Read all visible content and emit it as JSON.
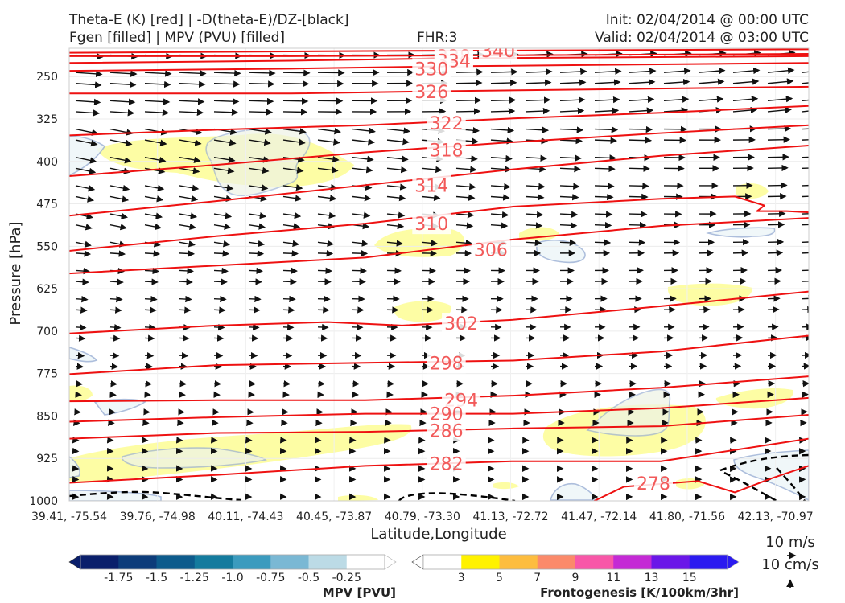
{
  "header": {
    "line1_left": "Theta-E (K) [red] | -D(theta-E)/DZ-[black]",
    "line2_left": "Fgen [filled] | MPV (PVU) [filled]",
    "line1_right": "Init: 02/04/2014 @ 00:00 UTC",
    "line2_right": "Valid: 02/04/2014 @ 03:00 UTC",
    "center": "FHR:3"
  },
  "chart_data": {
    "type": "cross-section",
    "xlabel": "Latitude,Longitude",
    "ylabel": "Pressure [hPa]",
    "x_ticks": [
      "39.41, -75.54",
      "39.76, -74.98",
      "40.11, -74.43",
      "40.45, -73.87",
      "40.79, -73.30",
      "41.13, -72.72",
      "41.47, -72.14",
      "41.80, -71.56",
      "42.13, -70.97"
    ],
    "y_ticks": [
      250,
      325,
      400,
      475,
      550,
      625,
      700,
      775,
      850,
      925,
      1000
    ],
    "y_range": [
      200,
      1000
    ],
    "theta_e_contours": [
      {
        "value": 340,
        "label": "340",
        "points": [
          [
            0,
            208
          ],
          [
            0.4,
            205
          ],
          [
            0.6,
            204
          ],
          [
            1,
            202
          ]
        ]
      },
      {
        "value": 338,
        "label": "338",
        "points": [
          [
            0,
            214
          ],
          [
            0.3,
            214
          ],
          [
            0.5,
            213
          ],
          [
            1,
            210
          ]
        ]
      },
      {
        "value": 334,
        "label": "334",
        "points": [
          [
            0,
            226
          ],
          [
            0.3,
            222
          ],
          [
            0.5,
            218
          ],
          [
            1,
            214
          ]
        ]
      },
      {
        "value": 330,
        "label": "330",
        "points": [
          [
            0,
            240
          ],
          [
            0.3,
            236
          ],
          [
            0.5,
            232
          ],
          [
            1,
            226
          ]
        ]
      },
      {
        "value": 326,
        "label": "326",
        "points": [
          [
            0,
            280
          ],
          [
            0.3,
            280
          ],
          [
            0.5,
            276
          ],
          [
            0.75,
            272
          ],
          [
            1,
            268
          ]
        ]
      },
      {
        "value": 322,
        "label": "322",
        "points": [
          [
            0,
            354
          ],
          [
            0.2,
            344
          ],
          [
            0.4,
            336
          ],
          [
            0.6,
            324
          ],
          [
            0.8,
            314
          ],
          [
            1,
            302
          ]
        ]
      },
      {
        "value": 318,
        "label": "318",
        "points": [
          [
            0,
            426
          ],
          [
            0.2,
            406
          ],
          [
            0.4,
            384
          ],
          [
            0.6,
            366
          ],
          [
            0.8,
            350
          ],
          [
            1,
            336
          ]
        ]
      },
      {
        "value": 314,
        "label": "314",
        "points": [
          [
            0,
            496
          ],
          [
            0.2,
            470
          ],
          [
            0.4,
            442
          ],
          [
            0.6,
            414
          ],
          [
            0.8,
            390
          ],
          [
            1,
            372
          ]
        ]
      },
      {
        "value": 310,
        "label": "310",
        "points": [
          [
            0,
            558
          ],
          [
            0.2,
            532
          ],
          [
            0.4,
            510
          ],
          [
            0.6,
            480
          ],
          [
            0.8,
            466
          ],
          [
            0.9,
            462
          ],
          [
            0.94,
            478
          ],
          [
            0.93,
            488
          ],
          [
            0.97,
            488
          ],
          [
            1,
            490
          ]
        ]
      },
      {
        "value": 306,
        "label": "306",
        "points": [
          [
            0,
            598
          ],
          [
            0.2,
            584
          ],
          [
            0.4,
            570
          ],
          [
            0.6,
            538
          ],
          [
            0.8,
            514
          ],
          [
            1,
            500
          ]
        ]
      },
      {
        "value": 302,
        "label": "302",
        "points": [
          [
            0,
            704
          ],
          [
            0.2,
            690
          ],
          [
            0.35,
            684
          ],
          [
            0.45,
            690
          ],
          [
            0.6,
            680
          ],
          [
            0.8,
            656
          ],
          [
            1,
            630
          ]
        ]
      },
      {
        "value": 298,
        "label": "298",
        "points": [
          [
            0,
            776
          ],
          [
            0.2,
            760
          ],
          [
            0.4,
            756
          ],
          [
            0.6,
            752
          ],
          [
            0.8,
            736
          ],
          [
            1,
            708
          ]
        ]
      },
      {
        "value": 294,
        "label": "294",
        "points": [
          [
            0,
            824
          ],
          [
            0.2,
            822
          ],
          [
            0.4,
            822
          ],
          [
            0.6,
            814
          ],
          [
            0.8,
            800
          ],
          [
            1,
            780
          ]
        ]
      },
      {
        "value": 290,
        "label": "290",
        "points": [
          [
            0,
            860
          ],
          [
            0.2,
            852
          ],
          [
            0.4,
            846
          ],
          [
            0.6,
            846
          ],
          [
            0.8,
            836
          ],
          [
            1,
            818
          ]
        ]
      },
      {
        "value": 286,
        "label": "286",
        "points": [
          [
            0,
            890
          ],
          [
            0.2,
            880
          ],
          [
            0.4,
            878
          ],
          [
            0.6,
            872
          ],
          [
            0.8,
            868
          ],
          [
            1,
            848
          ]
        ]
      },
      {
        "value": 282,
        "label": "282",
        "points": [
          [
            0,
            968
          ],
          [
            0.2,
            954
          ],
          [
            0.4,
            938
          ],
          [
            0.6,
            930
          ],
          [
            0.8,
            930
          ],
          [
            1,
            890
          ]
        ]
      },
      {
        "value": 278,
        "label": "278",
        "points": [
          [
            0.71,
            1000
          ],
          [
            0.75,
            975
          ],
          [
            0.85,
            965
          ],
          [
            0.9,
            985
          ],
          [
            0.95,
            960
          ],
          [
            1,
            938
          ]
        ]
      }
    ],
    "mpv_legend": {
      "label": "MPV [PVU]",
      "ticks": [
        "-1.75",
        "-1.5",
        "-1.25",
        "-1.0",
        "-0.75",
        "-0.5",
        "-0.25"
      ],
      "colors": [
        "#0a1f6b",
        "#0d3c7a",
        "#0d5b8c",
        "#147b9e",
        "#3b9bbe",
        "#7ab8d4",
        "#bcdbe6",
        "#ffffff"
      ]
    },
    "fgen_legend": {
      "label": "Frontogenesis [K/100km/3hr]",
      "ticks": [
        "3",
        "5",
        "7",
        "9",
        "11",
        "13",
        "15"
      ],
      "colors": [
        "#ffffff",
        "#fff200",
        "#fdbd3f",
        "#fb8a6a",
        "#f857a8",
        "#c42ad5",
        "#6a17e8",
        "#2b1af0"
      ]
    },
    "wind_key": {
      "horizontal": "10 m/s",
      "vertical": "10 cm/s"
    }
  }
}
